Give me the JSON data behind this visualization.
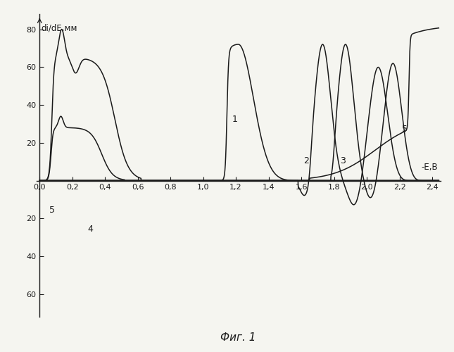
{
  "title": "Фиг. 1",
  "ylabel": "di/dE,мм",
  "xlabel": "-E,В",
  "xlim": [
    -0.02,
    2.45
  ],
  "ylim": [
    -72,
    88
  ],
  "yticks_pos": [
    20,
    40,
    60,
    80
  ],
  "yticks_neg": [
    -20,
    -40,
    -60
  ],
  "xticks": [
    0.0,
    0.2,
    0.4,
    0.6,
    0.8,
    1.0,
    1.2,
    1.4,
    1.6,
    1.8,
    2.0,
    2.2,
    2.4
  ],
  "background_color": "#f5f5f0",
  "line_color": "#1a1a1a"
}
